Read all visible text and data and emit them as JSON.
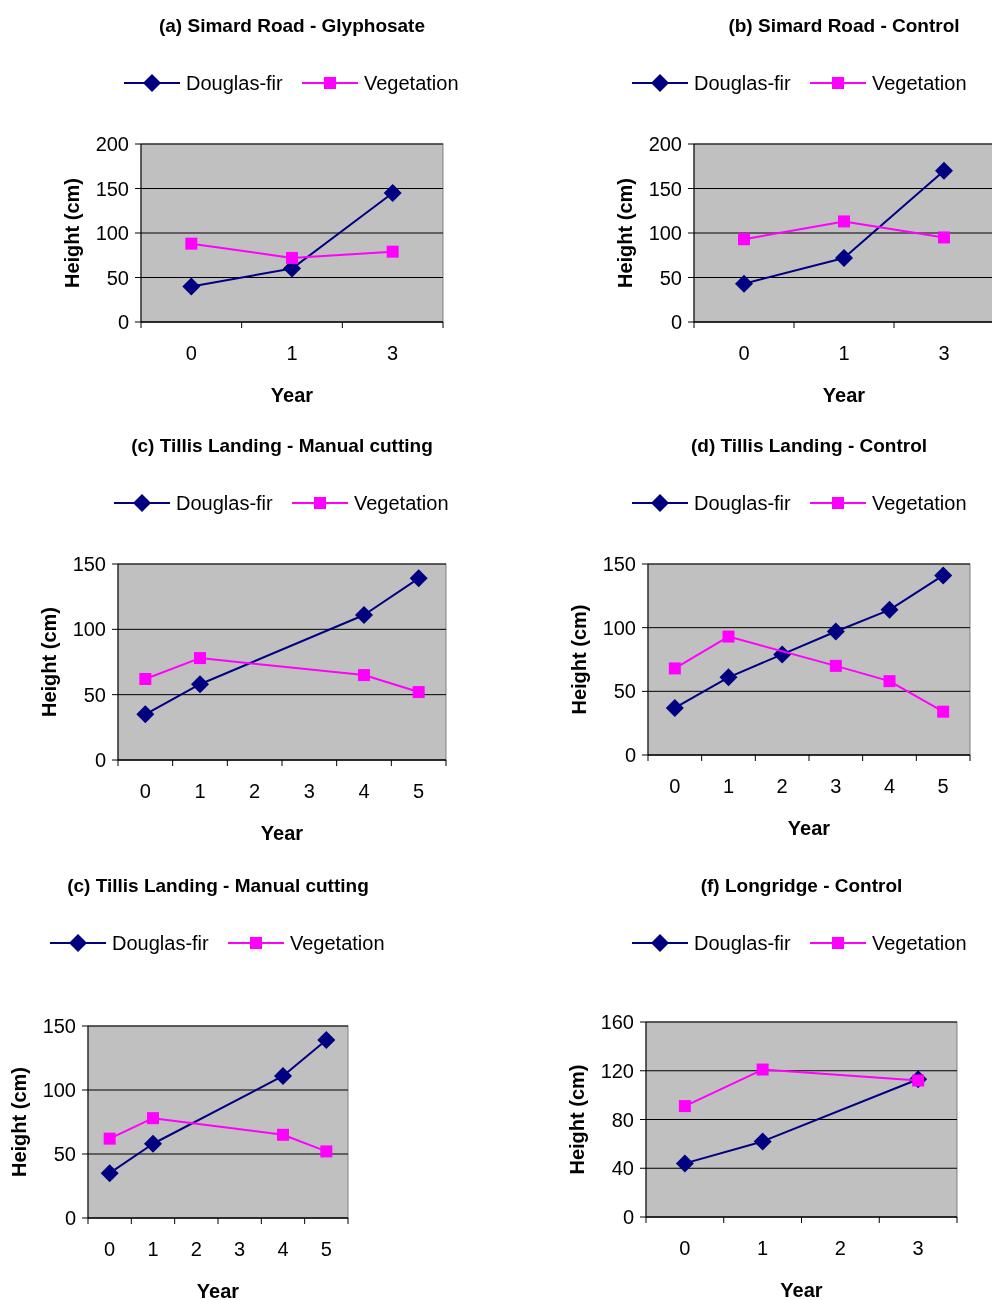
{
  "chart_data": [
    {
      "type": "line",
      "title": "(a) Simard Road - Glyphosate",
      "xlabel": "Year",
      "ylabel": "Height (cm)",
      "categories": [
        "0",
        "1",
        "3"
      ],
      "ylim": [
        0,
        200
      ],
      "yticks": [
        0,
        50,
        100,
        150,
        200
      ],
      "grid": "y",
      "legend": "top",
      "series": [
        {
          "name": "Douglas-fir",
          "color": "#000080",
          "marker": "diamond",
          "values": [
            40,
            60,
            145
          ]
        },
        {
          "name": "Vegetation",
          "color": "#ff00ff",
          "marker": "square",
          "values": [
            88,
            72,
            79
          ]
        }
      ]
    },
    {
      "type": "line",
      "title": "(b)  Simard Road - Control",
      "xlabel": "Year",
      "ylabel": "Height (cm)",
      "categories": [
        "0",
        "1",
        "3"
      ],
      "ylim": [
        0,
        200
      ],
      "yticks": [
        0,
        50,
        100,
        150,
        200
      ],
      "grid": "y",
      "legend": "top",
      "series": [
        {
          "name": "Douglas-fir",
          "color": "#000080",
          "marker": "diamond",
          "values": [
            43,
            72,
            170
          ]
        },
        {
          "name": "Vegetation",
          "color": "#ff00ff",
          "marker": "square",
          "values": [
            93,
            113,
            95
          ]
        }
      ]
    },
    {
      "type": "line",
      "title": "(c)  Tillis Landing - Manual cutting",
      "xlabel": "Year",
      "ylabel": "Height (cm)",
      "categories": [
        "0",
        "1",
        "2",
        "3",
        "4",
        "5"
      ],
      "ylim": [
        0,
        150
      ],
      "yticks": [
        0,
        50,
        100,
        150
      ],
      "grid": "y",
      "legend": "top",
      "series": [
        {
          "name": "Douglas-fir",
          "color": "#000080",
          "marker": "diamond",
          "values": [
            35,
            58,
            null,
            null,
            111,
            139
          ]
        },
        {
          "name": "Vegetation",
          "color": "#ff00ff",
          "marker": "square",
          "values": [
            62,
            78,
            null,
            null,
            65,
            52
          ]
        }
      ]
    },
    {
      "type": "line",
      "title": "(d)  Tillis Landing - Control",
      "xlabel": "Year",
      "ylabel": "Height (cm)",
      "categories": [
        "0",
        "1",
        "2",
        "3",
        "4",
        "5"
      ],
      "ylim": [
        0,
        150
      ],
      "yticks": [
        0,
        50,
        100,
        150
      ],
      "grid": "y",
      "legend": "top",
      "series": [
        {
          "name": "Douglas-fir",
          "color": "#000080",
          "marker": "diamond",
          "values": [
            37,
            61,
            79,
            97,
            114,
            141
          ]
        },
        {
          "name": "Vegetation",
          "color": "#ff00ff",
          "marker": "square",
          "values": [
            68,
            93,
            null,
            70,
            58,
            34
          ]
        }
      ]
    },
    {
      "type": "line",
      "title": "(c) Tillis Landing - Manual cutting",
      "xlabel": "Year",
      "ylabel": "Height (cm)",
      "categories": [
        "0",
        "1",
        "2",
        "3",
        "4",
        "5"
      ],
      "ylim": [
        0,
        150
      ],
      "yticks": [
        0,
        50,
        100,
        150
      ],
      "grid": "y",
      "legend": "top",
      "series": [
        {
          "name": "Douglas-fir",
          "color": "#000080",
          "marker": "diamond",
          "values": [
            35,
            58,
            null,
            null,
            111,
            139
          ]
        },
        {
          "name": "Vegetation",
          "color": "#ff00ff",
          "marker": "square",
          "values": [
            62,
            78,
            null,
            null,
            65,
            52
          ]
        }
      ]
    },
    {
      "type": "line",
      "title": "(f)  Longridge - Control",
      "xlabel": "Year",
      "ylabel": "Height (cm)",
      "categories": [
        "0",
        "1",
        "2",
        "3"
      ],
      "ylim": [
        0,
        160
      ],
      "yticks": [
        0,
        40,
        80,
        120,
        160
      ],
      "grid": "y",
      "legend": "top",
      "series": [
        {
          "name": "Douglas-fir",
          "color": "#000080",
          "marker": "diamond",
          "values": [
            44,
            62,
            null,
            113
          ]
        },
        {
          "name": "Vegetation",
          "color": "#ff00ff",
          "marker": "square",
          "values": [
            91,
            121,
            null,
            112
          ]
        }
      ]
    }
  ]
}
